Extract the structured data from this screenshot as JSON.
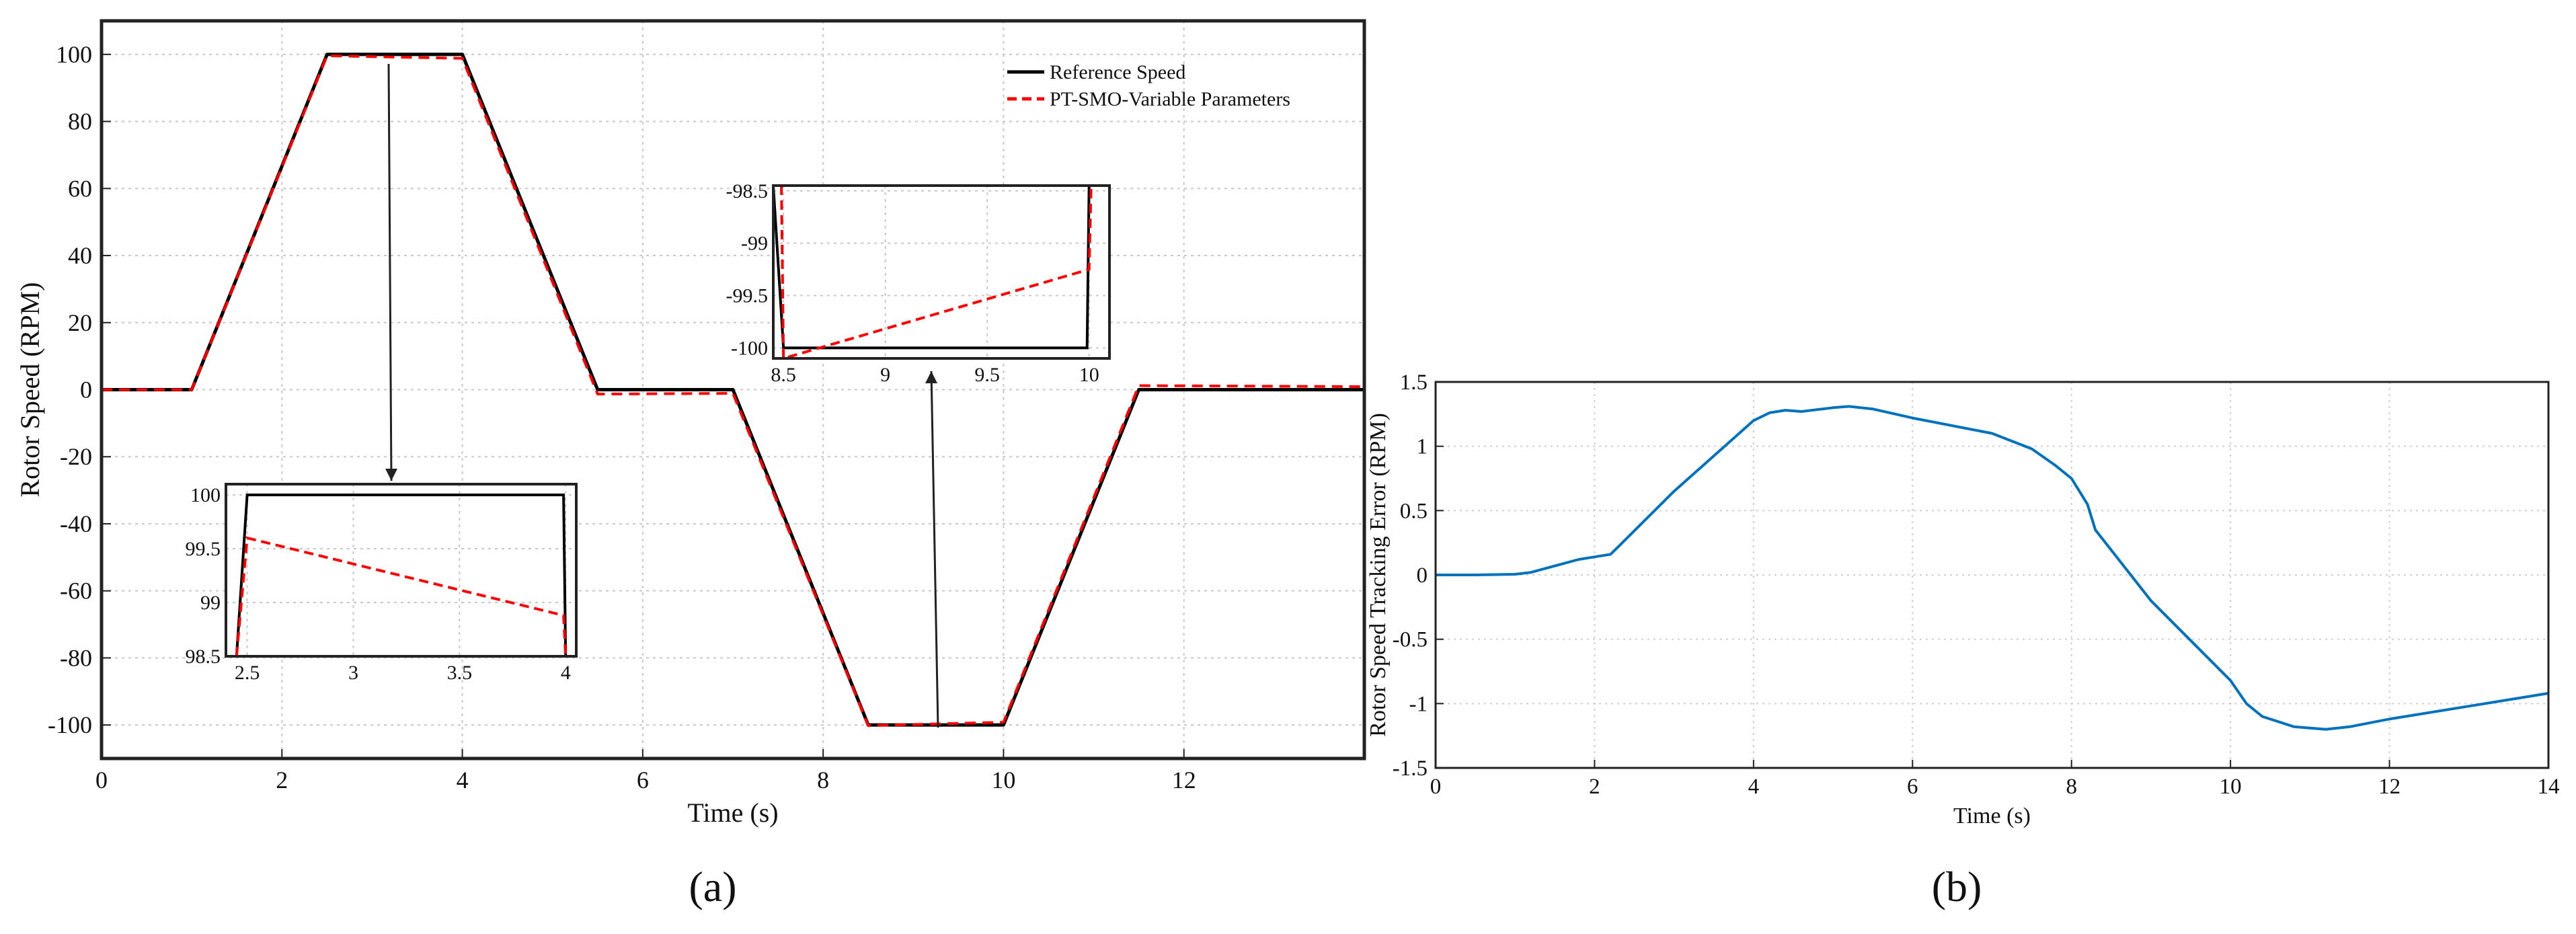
{
  "chart_data": [
    {
      "panel": "(a)",
      "type": "line",
      "xlabel": "Time (s)",
      "ylabel": "Rotor Speed (RPM)",
      "xlim": [
        0,
        14
      ],
      "ylim": [
        -110,
        110
      ],
      "xticks": [
        0,
        2,
        4,
        6,
        8,
        10,
        12
      ],
      "xtick_labels": [
        "0",
        "2",
        "4",
        "6",
        "8",
        "10",
        "12"
      ],
      "yticks": [
        -100,
        -80,
        -60,
        -40,
        -20,
        0,
        20,
        40,
        60,
        80,
        100
      ],
      "ytick_labels": [
        "-100",
        "-80",
        "-60",
        "-40",
        "-20",
        "0",
        "20",
        "40",
        "60",
        "80",
        "100"
      ],
      "grid": true,
      "legend_position": "top-right",
      "series": [
        {
          "name": "Reference Speed",
          "color": "#000000",
          "style": "solid",
          "x": [
            0,
            1,
            2.5,
            4,
            5.5,
            7,
            8.5,
            10,
            11.5,
            14
          ],
          "y": [
            0,
            0,
            100,
            100,
            0,
            0,
            -100,
            -100,
            0,
            0
          ]
        },
        {
          "name": "PT-SMO-Variable Parameters",
          "color": "#ff0000",
          "style": "dashed",
          "x": [
            0,
            1,
            2.5,
            4,
            5.5,
            7,
            8.5,
            10,
            11.5,
            14
          ],
          "y": [
            0,
            0,
            99.6,
            98.8,
            -1.3,
            -1.1,
            -100.2,
            -99.2,
            1.2,
            0.9
          ]
        }
      ],
      "insets": [
        {
          "xlim": [
            2.4,
            4.05
          ],
          "ylim": [
            98.5,
            100.1
          ],
          "xticks": [
            2.5,
            3,
            3.5,
            4
          ],
          "xtick_labels": [
            "2.5",
            "3",
            "3.5",
            "4"
          ],
          "yticks": [
            98.5,
            99,
            99.5,
            100
          ],
          "ytick_labels": [
            "98.5",
            "99",
            "99.5",
            "100"
          ],
          "series": [
            {
              "name": "Reference Speed",
              "x": [
                2.4,
                2.45,
                2.5,
                3.99,
                4.0,
                4.05
              ],
              "y": [
                98.5,
                98.5,
                100,
                100,
                98.5,
                98.5
              ]
            },
            {
              "name": "PT-SMO-Variable Parameters",
              "x": [
                2.45,
                2.5,
                3.99,
                4.0
              ],
              "y": [
                98.5,
                99.6,
                98.88,
                98.5
              ]
            }
          ]
        },
        {
          "xlim": [
            8.45,
            10.1
          ],
          "ylim": [
            -100.1,
            -98.45
          ],
          "xticks": [
            8.5,
            9,
            9.5,
            10
          ],
          "xtick_labels": [
            "8.5",
            "9",
            "9.5",
            "10"
          ],
          "yticks": [
            -100,
            -99.5,
            -99,
            -98.5
          ],
          "ytick_labels": [
            "-100",
            "-99.5",
            "-99",
            "-98.5"
          ],
          "series": [
            {
              "name": "Reference Speed",
              "x": [
                8.45,
                8.5,
                9.99,
                10.0,
                10.05
              ],
              "y": [
                -98.45,
                -100,
                -100,
                -98.45,
                -98.45
              ]
            },
            {
              "name": "PT-SMO-Variable Parameters",
              "x": [
                8.49,
                8.5,
                10.0,
                10.01
              ],
              "y": [
                -98.45,
                -100.1,
                -99.25,
                -98.45
              ]
            }
          ]
        }
      ]
    },
    {
      "panel": "(b)",
      "type": "line",
      "xlabel": "Time (s)",
      "ylabel": "Rotor Speed Tracking Error (RPM)",
      "xlim": [
        0,
        14
      ],
      "ylim": [
        -1.5,
        1.5
      ],
      "xticks": [
        0,
        2,
        4,
        6,
        8,
        10,
        12,
        14
      ],
      "xtick_labels": [
        "0",
        "2",
        "4",
        "6",
        "8",
        "10",
        "12",
        "14"
      ],
      "yticks": [
        -1.5,
        -1,
        -0.5,
        0,
        0.5,
        1,
        1.5
      ],
      "ytick_labels": [
        "-1.5",
        "-1",
        "-0.5",
        "0",
        "0.5",
        "1",
        "1.5"
      ],
      "grid": true,
      "series": [
        {
          "color": "#0072bd",
          "x": [
            0,
            0.5,
            1.0,
            1.2,
            1.5,
            1.8,
            2.0,
            2.2,
            2.3,
            3.0,
            4.0,
            4.2,
            4.4,
            4.6,
            5.0,
            5.2,
            5.5,
            6.0,
            7.0,
            7.5,
            7.8,
            8.0,
            8.1,
            8.2,
            8.3,
            9.0,
            10.0,
            10.2,
            10.4,
            10.8,
            11.2,
            11.5,
            12.0,
            13.0,
            14.0
          ],
          "y": [
            0,
            0,
            0.005,
            0.02,
            0.07,
            0.12,
            0.14,
            0.16,
            0.22,
            0.65,
            1.2,
            1.26,
            1.28,
            1.27,
            1.3,
            1.31,
            1.29,
            1.22,
            1.1,
            0.98,
            0.85,
            0.75,
            0.65,
            0.55,
            0.35,
            -0.2,
            -0.82,
            -1.0,
            -1.1,
            -1.18,
            -1.2,
            -1.18,
            -1.12,
            -1.02,
            -0.92
          ]
        }
      ]
    }
  ],
  "panel_labels": [
    "(a)",
    "(b)"
  ]
}
